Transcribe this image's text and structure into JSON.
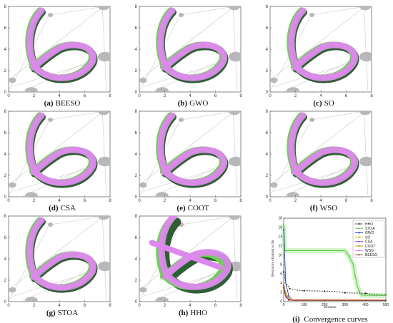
{
  "panels": [
    {
      "letter": "(a)",
      "name": "BEESO"
    },
    {
      "letter": "(b)",
      "name": "GWO"
    },
    {
      "letter": "(c)",
      "name": "SO"
    },
    {
      "letter": "(d)",
      "name": "CSA"
    },
    {
      "letter": "(e)",
      "name": "COOT"
    },
    {
      "letter": "(f)",
      "name": "WSO"
    },
    {
      "letter": "(g)",
      "name": "STOA"
    },
    {
      "letter": "(h)",
      "name": "HHO"
    }
  ],
  "path_axes": {
    "x_ticks": [
      "0",
      "2",
      "4",
      "6",
      "8"
    ],
    "y_ticks": [
      "0",
      "2",
      "4",
      "6",
      "8"
    ]
  },
  "convergence": {
    "letter": "(i)",
    "name": "Convergence curves",
    "xlabel": "Iteration",
    "ylabel": "Best score obtained so far",
    "x_ticks": [
      "0",
      "100",
      "200",
      "300",
      "400",
      "500"
    ],
    "y_ticks": [
      "0",
      "2",
      "4",
      "6",
      "8",
      "10",
      "12",
      "14",
      "16",
      "18"
    ],
    "legend": [
      "HHO",
      "STOA",
      "GWO",
      "SO",
      "CSA",
      "COOT",
      "WSO",
      "BEESO"
    ]
  },
  "chart_data": {
    "type": "line",
    "xlabel": "Iteration",
    "ylabel": "Best score obtained so far",
    "xlim": [
      0,
      500
    ],
    "ylim": [
      0,
      18
    ],
    "grid": false,
    "legend_position": "top-right",
    "series": [
      {
        "name": "HHO",
        "color": "#222222",
        "x": [
          0,
          10,
          30,
          60,
          100,
          150,
          200,
          250,
          300,
          350,
          400,
          450,
          500
        ],
        "y": [
          6.4,
          4.0,
          2.8,
          2.5,
          2.35,
          2.3,
          2.25,
          2.2,
          1.9,
          1.85,
          1.8,
          1.5,
          1.4
        ]
      },
      {
        "name": "STOA",
        "color": "#5fc44a",
        "x": [
          0,
          5,
          10,
          300,
          320,
          340,
          350,
          360,
          370,
          380,
          500
        ],
        "y": [
          16.5,
          11.2,
          11.0,
          11.0,
          9.8,
          8.0,
          5.5,
          3.5,
          2.2,
          1.4,
          1.3
        ]
      },
      {
        "name": "GWO",
        "color": "#1f3cc4",
        "x": [
          0,
          10,
          25,
          40,
          60,
          500
        ],
        "y": [
          15.5,
          4.0,
          1.2,
          0.45,
          0.3,
          0.25
        ]
      },
      {
        "name": "SO",
        "color": "#e0b400",
        "x": [
          0,
          10,
          25,
          40,
          500
        ],
        "y": [
          4.0,
          1.8,
          0.5,
          0.35,
          0.3
        ]
      },
      {
        "name": "CSA",
        "color": "#8a3fb8",
        "x": [
          0,
          10,
          30,
          500
        ],
        "y": [
          3.5,
          1.3,
          0.45,
          0.35
        ]
      },
      {
        "name": "COOT",
        "color": "#c8a000",
        "x": [
          0,
          15,
          40,
          500
        ],
        "y": [
          3.2,
          1.4,
          0.5,
          0.4
        ]
      },
      {
        "name": "WSO",
        "color": "#e86ee8",
        "x": [
          0,
          10,
          30,
          500
        ],
        "y": [
          2.8,
          0.9,
          0.35,
          0.3
        ]
      },
      {
        "name": "BEESO",
        "color": "#8b4a2b",
        "x": [
          0,
          10,
          25,
          50,
          500
        ],
        "y": [
          3.0,
          1.0,
          0.35,
          0.25,
          0.25
        ]
      }
    ]
  }
}
